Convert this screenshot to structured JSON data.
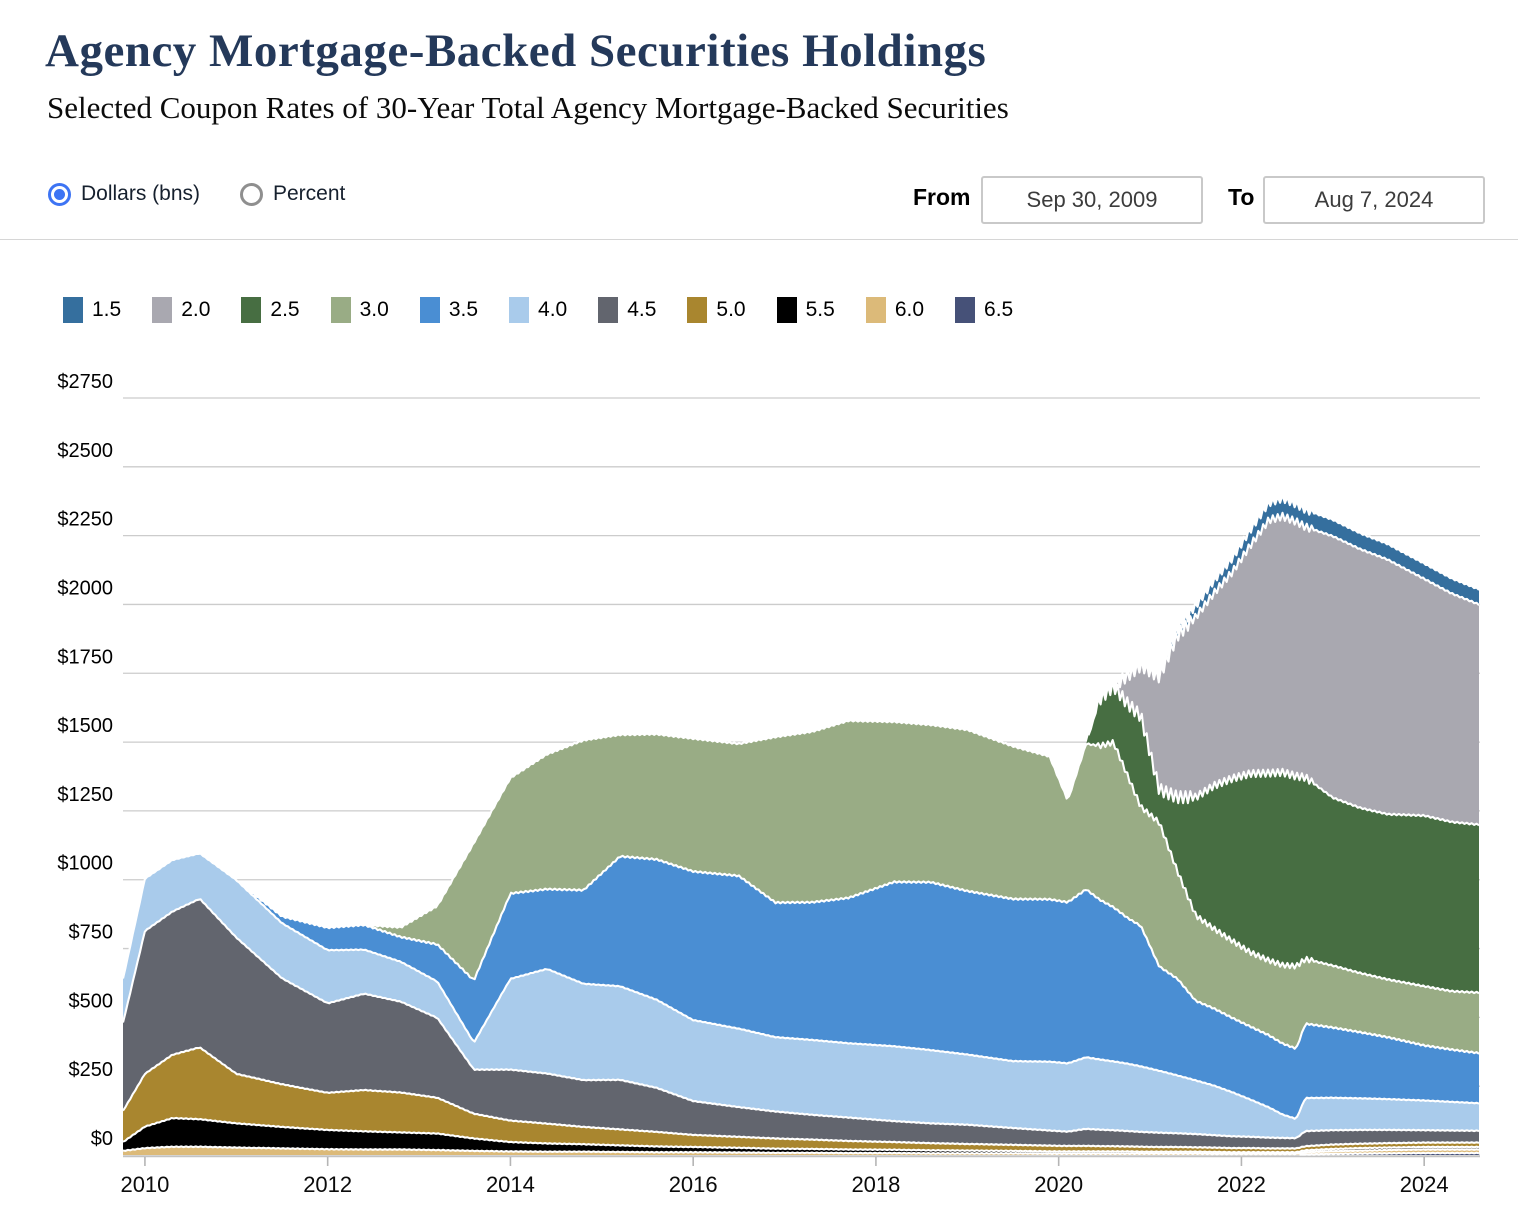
{
  "header": {
    "title": "Agency Mortgage-Backed Securities Holdings",
    "subtitle": "Selected Coupon Rates of 30-Year Total Agency Mortgage-Backed Securities"
  },
  "controls": {
    "unit_options": [
      {
        "label": "Dollars (bns)",
        "selected": true
      },
      {
        "label": "Percent",
        "selected": false
      }
    ],
    "from_label": "From",
    "from_value": "Sep 30, 2009",
    "to_label": "To",
    "to_value": "Aug 7, 2024",
    "accent_color": "#3d74f4"
  },
  "chart_data": {
    "type": "area",
    "stacked": true,
    "unit": "dollars_billions",
    "xlim": [
      2009.76,
      2024.6
    ],
    "ylim": [
      0,
      2750
    ],
    "grid": true,
    "legend_position": "top",
    "gridline_color": "#cccccc",
    "separator_color": "#ffffff",
    "xticks": [
      2010,
      2012,
      2014,
      2016,
      2018,
      2020,
      2022,
      2024
    ],
    "xtick_labels": [
      "2010",
      "2012",
      "2014",
      "2016",
      "2018",
      "2020",
      "2022",
      "2024"
    ],
    "yticks": [
      0,
      250,
      500,
      750,
      1000,
      1250,
      1500,
      1750,
      2000,
      2250,
      2500,
      2750
    ],
    "ytick_labels": [
      "$0",
      "$250",
      "$500",
      "$750",
      "$1000",
      "$1250",
      "$1500",
      "$1750",
      "$2000",
      "$2250",
      "$2500",
      "$2750"
    ],
    "legend_order": [
      "1.5",
      "2.0",
      "2.5",
      "3.0",
      "3.5",
      "4.0",
      "4.5",
      "5.0",
      "5.5",
      "6.0",
      "6.5"
    ],
    "stack_order": [
      "6.5",
      "6.0",
      "5.5",
      "5.0",
      "4.5",
      "4.0",
      "3.5",
      "3.0",
      "2.5",
      "2.0",
      "1.5"
    ],
    "x": [
      2009.76,
      2010.0,
      2010.3,
      2010.6,
      2011.0,
      2011.5,
      2012.0,
      2012.4,
      2012.8,
      2013.2,
      2013.6,
      2014.0,
      2014.4,
      2014.8,
      2015.2,
      2015.6,
      2016.0,
      2016.5,
      2016.9,
      2017.3,
      2017.7,
      2018.2,
      2018.6,
      2019.0,
      2019.5,
      2019.9,
      2020.1,
      2020.3,
      2020.45,
      2020.6,
      2020.75,
      2020.9,
      2021.1,
      2021.3,
      2021.5,
      2021.7,
      2021.9,
      2022.1,
      2022.3,
      2022.45,
      2022.6,
      2022.7,
      2023.0,
      2023.3,
      2023.6,
      2024.0,
      2024.3,
      2024.6
    ],
    "series": [
      {
        "name": "1.5",
        "color": "#356f9e",
        "values": [
          0,
          0,
          0,
          0,
          0,
          0,
          0,
          0,
          0,
          0,
          0,
          0,
          0,
          0,
          0,
          0,
          0,
          0,
          0,
          0,
          0,
          0,
          0,
          0,
          0,
          0,
          0,
          0,
          0,
          0,
          0,
          0,
          15,
          25,
          40,
          45,
          50,
          56,
          62,
          65,
          63,
          62,
          60,
          58,
          57,
          56,
          55,
          55
        ]
      },
      {
        "name": "2.0",
        "color": "#a9a8b0",
        "values": [
          0,
          0,
          0,
          0,
          0,
          0,
          0,
          0,
          0,
          0,
          0,
          0,
          0,
          0,
          0,
          0,
          0,
          0,
          0,
          0,
          0,
          0,
          0,
          0,
          0,
          0,
          0,
          0,
          0,
          0,
          100,
          185,
          410,
          588,
          655,
          700,
          750,
          830,
          920,
          930,
          925,
          910,
          950,
          940,
          925,
          860,
          830,
          800
        ]
      },
      {
        "name": "2.5",
        "color": "#476e42",
        "values": [
          0,
          0,
          0,
          0,
          0,
          0,
          0,
          0,
          0,
          0,
          0,
          0,
          0,
          0,
          0,
          0,
          0,
          0,
          0,
          0,
          0,
          0,
          0,
          0,
          0,
          0,
          0,
          0,
          170,
          205,
          260,
          330,
          120,
          270,
          430,
          520,
          590,
          650,
          680,
          700,
          690,
          660,
          610,
          600,
          600,
          620,
          615,
          610
        ]
      },
      {
        "name": "3.0",
        "color": "#99ac85",
        "values": [
          0,
          0,
          0,
          0,
          0,
          0,
          0,
          0,
          35,
          140,
          500,
          420,
          490,
          545,
          442,
          455,
          483,
          480,
          602,
          620,
          644,
          582,
          572,
          586,
          555,
          519,
          369,
          529,
          559,
          599,
          519,
          432,
          523,
          390,
          310,
          290,
          280,
          270,
          272,
          285,
          300,
          235,
          225,
          215,
          210,
          215,
          212,
          220
        ]
      },
      {
        "name": "3.5",
        "color": "#4a8ed3",
        "values": [
          0,
          0,
          0,
          0,
          0,
          25,
          82,
          90,
          90,
          135,
          226,
          310,
          290,
          340,
          472,
          510,
          540,
          555,
          489,
          500,
          528,
          597,
          610,
          594,
          589,
          590,
          585,
          610,
          580,
          560,
          530,
          510,
          379,
          351,
          289,
          280,
          270,
          265,
          262,
          258,
          255,
          270,
          255,
          240,
          225,
          200,
          190,
          182
        ]
      },
      {
        "name": "4.0",
        "color": "#a9cbeb",
        "values": [
          160,
          190,
          188,
          165,
          209,
          200,
          193,
          160,
          145,
          132,
          98,
          330,
          380,
          350,
          340,
          320,
          294,
          285,
          270,
          272,
          270,
          272,
          266,
          255,
          243,
          250,
          248,
          260,
          255,
          250,
          245,
          238,
          225,
          210,
          195,
          180,
          160,
          135,
          110,
          85,
          70,
          120,
          118,
          115,
          112,
          108,
          104,
          100
        ]
      },
      {
        "name": "4.5",
        "color": "#62656e",
        "values": [
          320,
          519,
          520,
          540,
          495,
          385,
          325,
          350,
          330,
          290,
          160,
          185,
          182,
          170,
          180,
          160,
          123,
          108,
          98,
          90,
          85,
          76,
          72,
          70,
          61,
          55,
          52,
          62,
          60,
          58,
          56,
          54,
          52,
          50,
          48,
          45,
          43,
          41,
          39,
          38,
          37,
          55,
          52,
          50,
          48,
          45,
          44,
          43
        ]
      },
      {
        "name": "5.0",
        "color": "#a9862f",
        "values": [
          113,
          192,
          230,
          261,
          180,
          155,
          135,
          150,
          145,
          130,
          90,
          78,
          72,
          63,
          58,
          53,
          44,
          40,
          37,
          34,
          31,
          28,
          26,
          24,
          22,
          21,
          20,
          20,
          19,
          19,
          18,
          18,
          17,
          17,
          16,
          16,
          15,
          15,
          14,
          14,
          14,
          15,
          16,
          16,
          16,
          16,
          16,
          16
        ]
      },
      {
        "name": "5.5",
        "color": "#000000",
        "values": [
          32,
          78,
          104,
          100,
          88,
          78,
          70,
          66,
          62,
          60,
          45,
          34,
          30,
          27,
          24,
          21,
          19,
          17,
          15,
          14,
          13,
          12,
          11,
          10,
          9,
          8,
          8,
          8,
          8,
          8,
          8,
          7,
          7,
          7,
          7,
          7,
          6,
          6,
          6,
          6,
          6,
          7,
          8,
          9,
          9,
          9,
          9,
          9
        ]
      },
      {
        "name": "6.0",
        "color": "#dcba79",
        "values": [
          15,
          25,
          30,
          30,
          27,
          24,
          21,
          20,
          20,
          18,
          15,
          13,
          12,
          12,
          11,
          10,
          10,
          9,
          8,
          8,
          7,
          7,
          6,
          6,
          6,
          5,
          5,
          5,
          5,
          5,
          5,
          5,
          5,
          5,
          5,
          4,
          4,
          4,
          4,
          4,
          4,
          8,
          10,
          11,
          12,
          13,
          13,
          13
        ]
      },
      {
        "name": "6.5",
        "color": "#465178",
        "values": [
          0,
          0,
          0,
          0,
          0,
          0,
          0,
          0,
          0,
          0,
          0,
          0,
          0,
          0,
          0,
          0,
          0,
          0,
          0,
          0,
          0,
          0,
          0,
          0,
          0,
          0,
          0,
          0,
          0,
          0,
          0,
          0,
          0,
          0,
          0,
          0,
          0,
          0,
          0,
          0,
          0,
          2,
          4,
          5,
          6,
          7,
          7,
          7
        ]
      }
    ]
  }
}
